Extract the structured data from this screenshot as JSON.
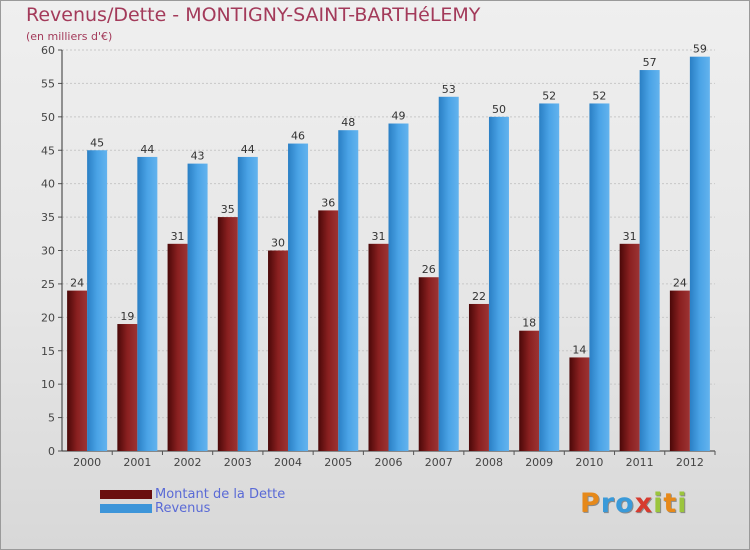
{
  "header": {
    "title": "Revenus/Dette - MONTIGNY-SAINT-BARTHéLEMY",
    "subtitle": "(en milliers d'€)"
  },
  "chart_data": {
    "type": "bar",
    "title": "Revenus/Dette - MONTIGNY-SAINT-BARTHéLEMY",
    "subtitle": "(en milliers d'€)",
    "xlabel": "",
    "ylabel": "",
    "ylim": [
      0,
      60
    ],
    "yticks": [
      0,
      5,
      10,
      15,
      20,
      25,
      30,
      35,
      40,
      45,
      50,
      55,
      60
    ],
    "grid": true,
    "categories": [
      "2000",
      "2001",
      "2002",
      "2003",
      "2004",
      "2005",
      "2006",
      "2007",
      "2008",
      "2009",
      "2010",
      "2011",
      "2012"
    ],
    "series": [
      {
        "name": "Montant de la Dette",
        "color": "#7a1818",
        "values": [
          24,
          19,
          31,
          35,
          30,
          36,
          31,
          26,
          22,
          18,
          14,
          31,
          24
        ]
      },
      {
        "name": "Revenus",
        "color": "#3d95d9",
        "values": [
          45,
          44,
          43,
          44,
          46,
          48,
          49,
          53,
          50,
          52,
          52,
          57,
          59
        ]
      }
    ],
    "legend_position": "bottom-left"
  },
  "legend": {
    "debt_label": "Montant de la Dette",
    "revenue_label": "Revenus"
  },
  "logo": {
    "letters": [
      "P",
      "r",
      "o",
      "x",
      "i",
      "t",
      "i"
    ],
    "colors": [
      "#e6891a",
      "#3a9ad9",
      "#3a9ad9",
      "#d73b2f",
      "#9bc53d",
      "#e6891a",
      "#9bc53d"
    ]
  }
}
